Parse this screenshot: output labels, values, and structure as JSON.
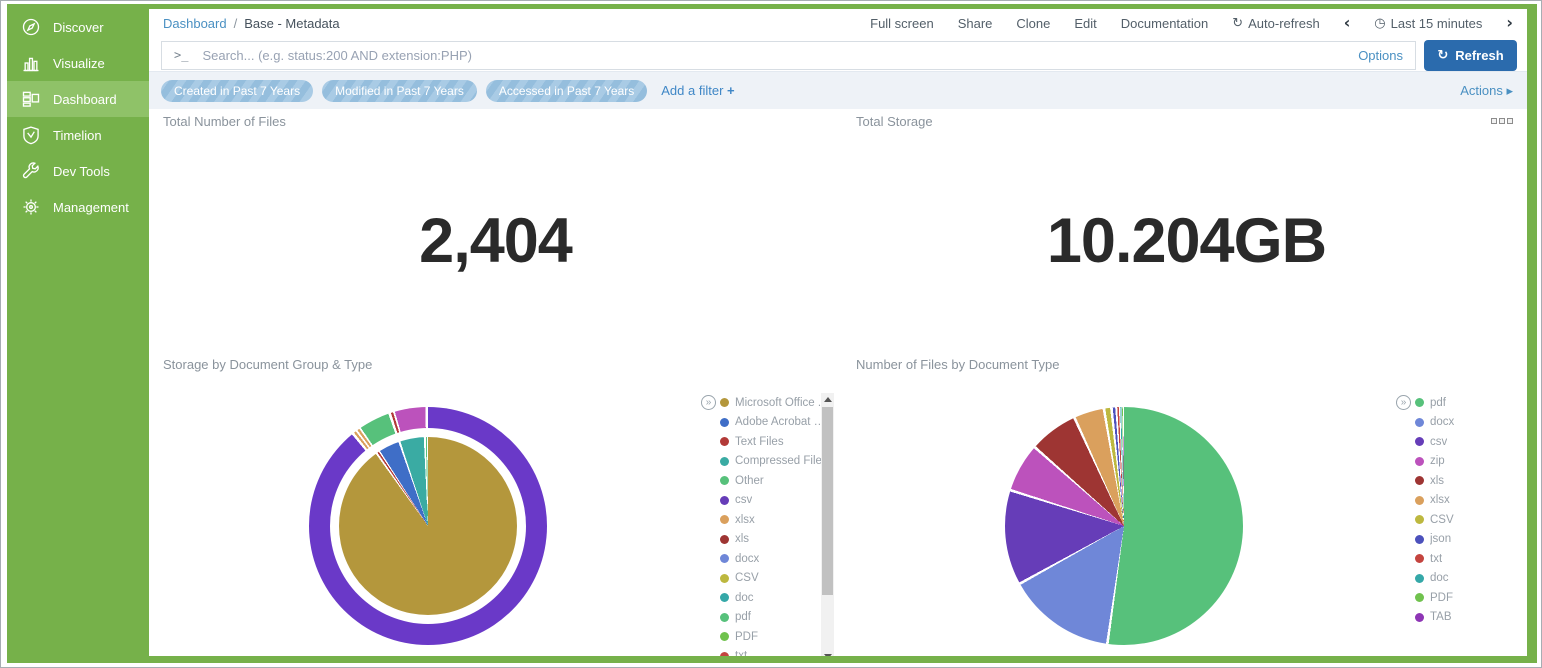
{
  "sidebar": {
    "items": [
      {
        "label": "Discover",
        "icon": "compass-icon",
        "active": false
      },
      {
        "label": "Visualize",
        "icon": "bar-chart-icon",
        "active": false
      },
      {
        "label": "Dashboard",
        "icon": "dashboard-grid-icon",
        "active": true
      },
      {
        "label": "Timelion",
        "icon": "shield-icon",
        "active": false
      },
      {
        "label": "Dev Tools",
        "icon": "wrench-icon",
        "active": false
      },
      {
        "label": "Management",
        "icon": "gear-icon",
        "active": false
      }
    ]
  },
  "breadcrumb": {
    "section": "Dashboard",
    "separator": "/",
    "title": "Base - Metadata"
  },
  "top_menu": {
    "items": [
      "Full screen",
      "Share",
      "Clone",
      "Edit",
      "Documentation"
    ],
    "auto_refresh_label": "Auto-refresh",
    "time_range_label": "Last 15 minutes"
  },
  "icons": {
    "auto_refresh": "↻",
    "clock": "◷",
    "prev": "‹",
    "next": "›",
    "refresh": "↻",
    "prompt": ">_",
    "legend_expand": "»",
    "actions_caret": "▸",
    "add_plus": "+"
  },
  "search": {
    "placeholder": "Search... (e.g. status:200 AND extension:PHP)",
    "options_label": "Options",
    "refresh_label": "Refresh"
  },
  "filters": {
    "pills": [
      "Created in Past 7 Years",
      "Modified in Past 7 Years",
      "Accessed in Past 7 Years"
    ],
    "add_filter_label": "Add a filter",
    "actions_label": "Actions"
  },
  "panels": {
    "total_files": {
      "title": "Total Number of Files",
      "value": "2,404"
    },
    "total_storage": {
      "title": "Total Storage",
      "value": "10.204GB"
    },
    "storage_pie": {
      "title": "Storage by Document Group & Type",
      "legend": [
        {
          "label": "Microsoft Office ...",
          "color": "#b4973c"
        },
        {
          "label": "Adobe Acrobat D...",
          "color": "#3f6ec7"
        },
        {
          "label": "Text Files",
          "color": "#b23a38"
        },
        {
          "label": "Compressed Files",
          "color": "#3aaba3"
        },
        {
          "label": "Other",
          "color": "#57c17b"
        },
        {
          "label": "csv",
          "color": "#663db8"
        },
        {
          "label": "xlsx",
          "color": "#daa05d"
        },
        {
          "label": "xls",
          "color": "#9e3533"
        },
        {
          "label": "docx",
          "color": "#6f87d8"
        },
        {
          "label": "CSV",
          "color": "#bdb83f"
        },
        {
          "label": "doc",
          "color": "#35a8a8"
        },
        {
          "label": "pdf",
          "color": "#57c17b"
        },
        {
          "label": "PDF",
          "color": "#70c24e"
        },
        {
          "label": "txt",
          "color": "#c4443f"
        }
      ]
    },
    "files_pie": {
      "title": "Number of Files by Document Type",
      "legend": [
        {
          "label": "pdf",
          "color": "#57c17b"
        },
        {
          "label": "docx",
          "color": "#6f87d8"
        },
        {
          "label": "csv",
          "color": "#663db8"
        },
        {
          "label": "zip",
          "color": "#bc52bc"
        },
        {
          "label": "xls",
          "color": "#9e3533"
        },
        {
          "label": "xlsx",
          "color": "#daa05d"
        },
        {
          "label": "CSV",
          "color": "#bdb83f"
        },
        {
          "label": "json",
          "color": "#4c51bc"
        },
        {
          "label": "txt",
          "color": "#c4443f"
        },
        {
          "label": "doc",
          "color": "#35a8a8"
        },
        {
          "label": "PDF",
          "color": "#70c24e"
        },
        {
          "label": "TAB",
          "color": "#8e35b5"
        }
      ]
    }
  },
  "chart_data": [
    {
      "type": "pie",
      "variant": "donut-sunburst",
      "title": "Storage by Document Group & Type",
      "units": "percent of total storage, estimated from arc angles",
      "legend_position": "right",
      "inner_ring": [
        {
          "label": "Microsoft Office Documents",
          "pct": 89.9,
          "color": "#b4973c"
        },
        {
          "label": "Text Files",
          "pct": 0.55,
          "color": "#b23a38"
        },
        {
          "label": "Adobe Acrobat Document",
          "pct": 4.0,
          "color": "#3f6ec7"
        },
        {
          "label": "Compressed Files",
          "pct": 4.6,
          "color": "#3aaba3"
        },
        {
          "label": "Other",
          "pct": 0.4,
          "color": "#57c17b"
        }
      ],
      "outer_ring": [
        {
          "label": "csv",
          "pct": 87.5,
          "color": "#6a39c8"
        },
        {
          "label": "xlsx",
          "pct": 0.55,
          "color": "#daa05d"
        },
        {
          "label": "xlsx",
          "pct": 0.55,
          "color": "#daa05d"
        },
        {
          "label": "pdf",
          "pct": 4.4,
          "color": "#57c17b"
        },
        {
          "label": "txt",
          "pct": 0.55,
          "color": "#b23a38"
        },
        {
          "label": "zip",
          "pct": 4.4,
          "color": "#bc52bc"
        }
      ]
    },
    {
      "type": "pie",
      "title": "Number of Files by Document Type",
      "units": "percent of file count, estimated from arc angles",
      "legend_position": "right",
      "slices": [
        {
          "label": "pdf",
          "pct": 52.0,
          "color": "#57c17b"
        },
        {
          "label": "docx",
          "pct": 14.6,
          "color": "#6f87d8"
        },
        {
          "label": "csv",
          "pct": 12.8,
          "color": "#663db8"
        },
        {
          "label": "zip",
          "pct": 6.6,
          "color": "#bc52bc"
        },
        {
          "label": "xls",
          "pct": 6.6,
          "color": "#9e3533"
        },
        {
          "label": "xlsx",
          "pct": 4.1,
          "color": "#daa05d"
        },
        {
          "label": "CSV",
          "pct": 1.0,
          "color": "#bdb83f"
        },
        {
          "label": "json",
          "pct": 0.6,
          "color": "#4c51bc"
        },
        {
          "label": "txt",
          "pct": 0.4,
          "color": "#c4443f"
        },
        {
          "label": "doc",
          "pct": 0.25,
          "color": "#35a8a8"
        },
        {
          "label": "PDF",
          "pct": 0.15,
          "color": "#70c24e"
        },
        {
          "label": "TAB",
          "pct": 0.1,
          "color": "#8e35b5"
        }
      ]
    }
  ],
  "colors": {
    "sidebar": "#76b14a",
    "sidebar_active": "#8fc268",
    "refresh_button": "#2b6bad",
    "link": "#4a90c2",
    "filter_bar_bg": "#eef2f7",
    "metric_text": "#2a2a2a"
  }
}
